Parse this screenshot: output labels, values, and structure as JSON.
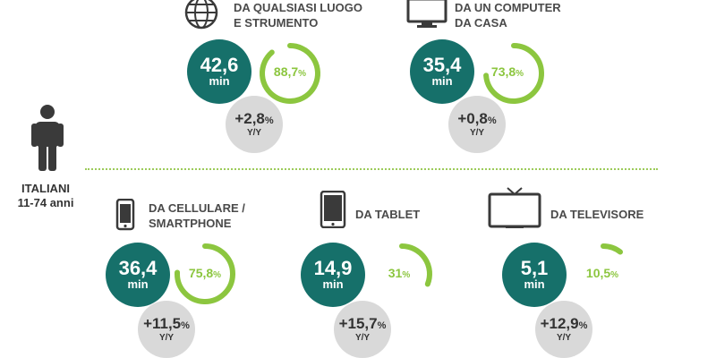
{
  "side_label": {
    "line1": "ITALIANI",
    "line2": "11-74 anni"
  },
  "unit_min": "min",
  "yy_label": "Y/Y",
  "stats": [
    {
      "id": "anywhere",
      "icon": "globe-icon",
      "line1": "DA QUALSIASI LUOGO",
      "line2": "E STRUMENTO",
      "minutes": "42,6",
      "share": "88,7",
      "share_value": 88.7,
      "yy": "+2,8"
    },
    {
      "id": "computer",
      "icon": "computer-monitor-icon",
      "line1": "DA UN COMPUTER",
      "line2": "DA CASA",
      "minutes": "35,4",
      "share": "73,8",
      "share_value": 73.8,
      "yy": "+0,8"
    },
    {
      "id": "smartphone",
      "icon": "smartphone-icon",
      "line1": "DA CELLULARE /",
      "line2": "SMARTPHONE",
      "minutes": "36,4",
      "share": "75,8",
      "share_value": 75.8,
      "yy": "+11,5"
    },
    {
      "id": "tablet",
      "icon": "tablet-icon",
      "line1": "DA TABLET",
      "line2": "",
      "minutes": "14,9",
      "share": "31",
      "share_value": 31,
      "yy": "+15,7"
    },
    {
      "id": "tv",
      "icon": "television-icon",
      "line1": "DA TELEVISORE",
      "line2": "",
      "minutes": "5,1",
      "share": "10,5",
      "share_value": 10.5,
      "yy": "+12,9"
    }
  ],
  "colors": {
    "dark": "#16706a",
    "accent": "#8cc63f",
    "grey": "#d9d9d9"
  }
}
